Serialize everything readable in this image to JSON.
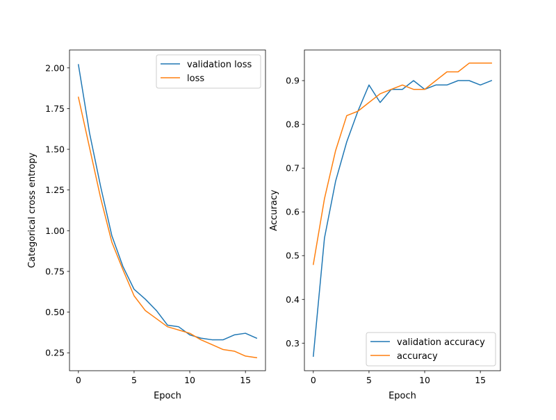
{
  "colors": {
    "series_1": "#1f77b4",
    "series_2": "#ff7f0e",
    "axes": "#000000",
    "legend_border": "#cccccc",
    "background": "#ffffff"
  },
  "chart_data": [
    {
      "type": "line",
      "title": "",
      "xlabel": "Epoch",
      "ylabel": "Categorical cross entropy",
      "xlim": [
        -0.8,
        16.8
      ],
      "ylim": [
        0.14,
        2.11
      ],
      "xticks": [
        0,
        5,
        10,
        15
      ],
      "yticks": [
        0.25,
        0.5,
        0.75,
        1.0,
        1.25,
        1.5,
        1.75,
        2.0
      ],
      "ytick_labels": [
        "0.25",
        "0.50",
        "0.75",
        "1.00",
        "1.25",
        "1.50",
        "1.75",
        "2.00"
      ],
      "grid": false,
      "legend": "upper right",
      "x": [
        0,
        1,
        2,
        3,
        4,
        5,
        6,
        7,
        8,
        9,
        10,
        11,
        12,
        13,
        14,
        15,
        16
      ],
      "series": [
        {
          "name": "validation loss",
          "color": "series_1",
          "values": [
            2.02,
            1.6,
            1.27,
            0.97,
            0.78,
            0.64,
            0.58,
            0.51,
            0.42,
            0.41,
            0.36,
            0.34,
            0.33,
            0.33,
            0.36,
            0.37,
            0.34
          ]
        },
        {
          "name": "loss",
          "color": "series_2",
          "values": [
            1.82,
            1.51,
            1.2,
            0.93,
            0.76,
            0.6,
            0.51,
            0.46,
            0.41,
            0.39,
            0.37,
            0.33,
            0.3,
            0.27,
            0.26,
            0.23,
            0.22
          ]
        }
      ]
    },
    {
      "type": "line",
      "title": "",
      "xlabel": "Epoch",
      "ylabel": "Accuracy",
      "xlim": [
        -0.8,
        16.8
      ],
      "ylim": [
        0.237,
        0.97
      ],
      "xticks": [
        0,
        5,
        10,
        15
      ],
      "yticks": [
        0.3,
        0.4,
        0.5,
        0.6,
        0.7,
        0.8,
        0.9
      ],
      "ytick_labels": [
        "0.3",
        "0.4",
        "0.5",
        "0.6",
        "0.7",
        "0.8",
        "0.9"
      ],
      "grid": false,
      "legend": "lower right",
      "x": [
        0,
        1,
        2,
        3,
        4,
        5,
        6,
        7,
        8,
        9,
        10,
        11,
        12,
        13,
        14,
        15,
        16
      ],
      "series": [
        {
          "name": "validation accuracy",
          "color": "series_1",
          "values": [
            0.27,
            0.54,
            0.67,
            0.76,
            0.83,
            0.89,
            0.85,
            0.88,
            0.88,
            0.9,
            0.88,
            0.89,
            0.89,
            0.9,
            0.9,
            0.89,
            0.9
          ]
        },
        {
          "name": "accuracy",
          "color": "series_2",
          "values": [
            0.48,
            0.63,
            0.74,
            0.82,
            0.83,
            0.85,
            0.87,
            0.88,
            0.89,
            0.88,
            0.88,
            0.9,
            0.92,
            0.92,
            0.94,
            0.94,
            0.94
          ]
        }
      ]
    }
  ]
}
